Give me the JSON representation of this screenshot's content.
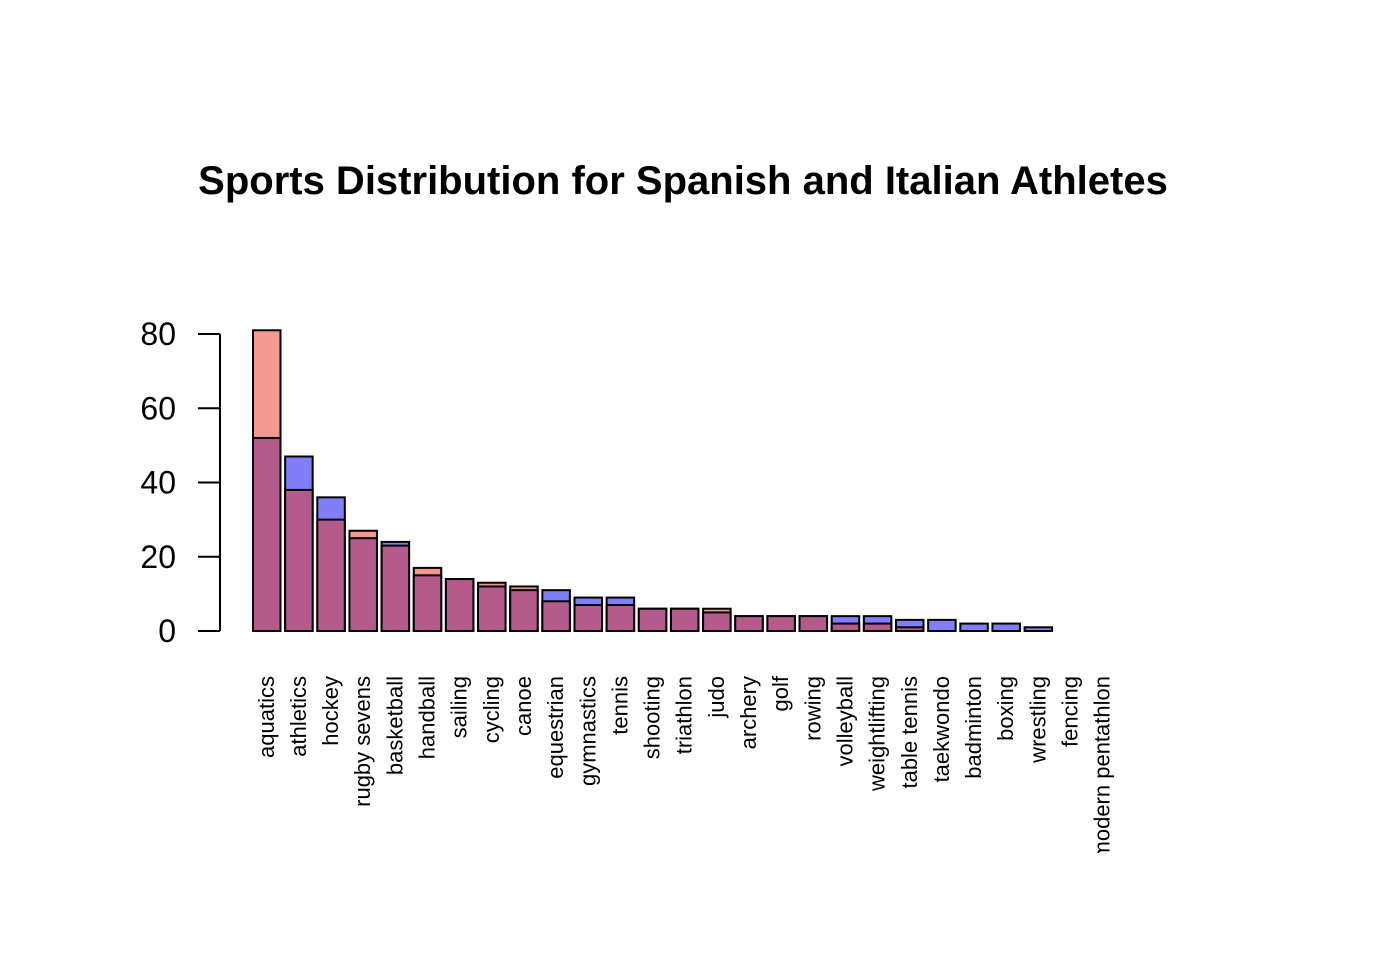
{
  "chart_data": {
    "type": "bar",
    "title": "Sports Distribution for Spanish and Italian Athletes",
    "xlabel": "",
    "ylabel": "",
    "ylim": [
      0,
      80
    ],
    "yticks": [
      0,
      20,
      40,
      60,
      80
    ],
    "grid": false,
    "legend": "none",
    "categories": [
      "aquatics",
      "athletics",
      "hockey",
      "rugby sevens",
      "basketball",
      "handball",
      "sailing",
      "cycling",
      "canoe",
      "equestrian",
      "gymnastics",
      "tennis",
      "shooting",
      "triathlon",
      "judo",
      "archery",
      "golf",
      "rowing",
      "volleyball",
      "weightlifting",
      "table tennis",
      "taekwondo",
      "badminton",
      "boxing",
      "wrestling",
      "fencing",
      "modern pentathlon"
    ],
    "series": [
      {
        "color": "#f4998f",
        "values": [
          81,
          38,
          30,
          27,
          23,
          17,
          14,
          13,
          12,
          8,
          7,
          7,
          6,
          6,
          6,
          4,
          4,
          4,
          2,
          2,
          1,
          0,
          0,
          0,
          0,
          0,
          0
        ]
      },
      {
        "color": "#7f7ff7",
        "values": [
          52,
          47,
          36,
          25,
          24,
          15,
          14,
          12,
          11,
          11,
          9,
          9,
          6,
          6,
          5,
          4,
          4,
          4,
          4,
          4,
          3,
          3,
          2,
          2,
          1,
          0,
          0
        ]
      }
    ],
    "overlap_color": "#b45a8c"
  }
}
